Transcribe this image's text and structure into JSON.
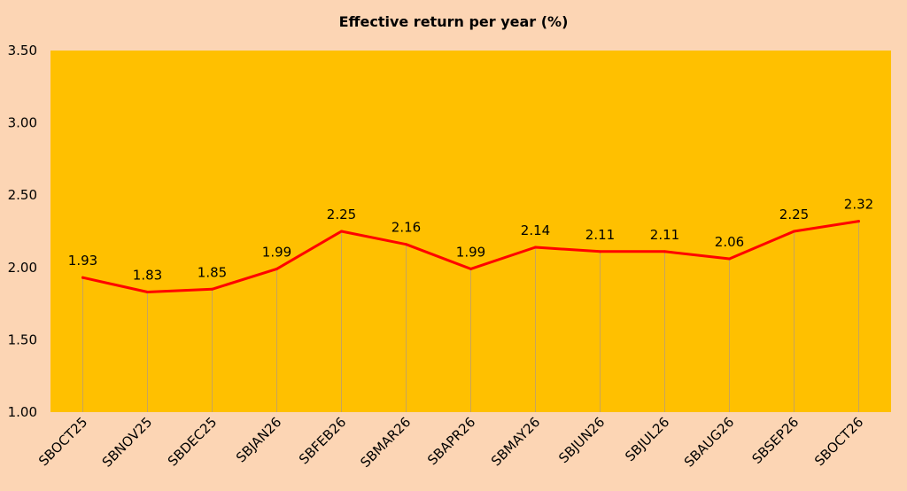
{
  "chart_data": {
    "type": "line",
    "title": "Effective return per year (%)",
    "xlabel": "",
    "ylabel": "",
    "categories": [
      "SBOCT25",
      "SBNOV25",
      "SBDEC25",
      "SBJAN26",
      "SBFEB26",
      "SBMAR26",
      "SBAPR26",
      "SBMAY26",
      "SBJUN26",
      "SBJUL26",
      "SBAUG26",
      "SBSEP26",
      "SBOCT26"
    ],
    "series": [
      {
        "values": [
          1.93,
          1.83,
          1.85,
          1.99,
          2.25,
          2.16,
          1.99,
          2.14,
          2.11,
          2.11,
          2.06,
          2.25,
          2.32
        ]
      }
    ],
    "data_labels": [
      "1.93",
      "1.83",
      "1.85",
      "1.99",
      "2.25",
      "2.16",
      "1.99",
      "2.14",
      "2.11",
      "2.11",
      "2.06",
      "2.25",
      "2.32"
    ],
    "ylim": [
      1.0,
      3.5
    ],
    "yticks": [
      1.0,
      1.5,
      2.0,
      2.5,
      3.0,
      3.5
    ],
    "ytick_labels": [
      "1.00",
      "1.50",
      "2.00",
      "2.50",
      "3.00",
      "3.50"
    ],
    "grid": false,
    "legend": "none",
    "colors": {
      "background": "#FCD5B4",
      "plot_area": "#FFC000",
      "line": "#FF0000",
      "drop_lines": "#C9A45A"
    }
  }
}
